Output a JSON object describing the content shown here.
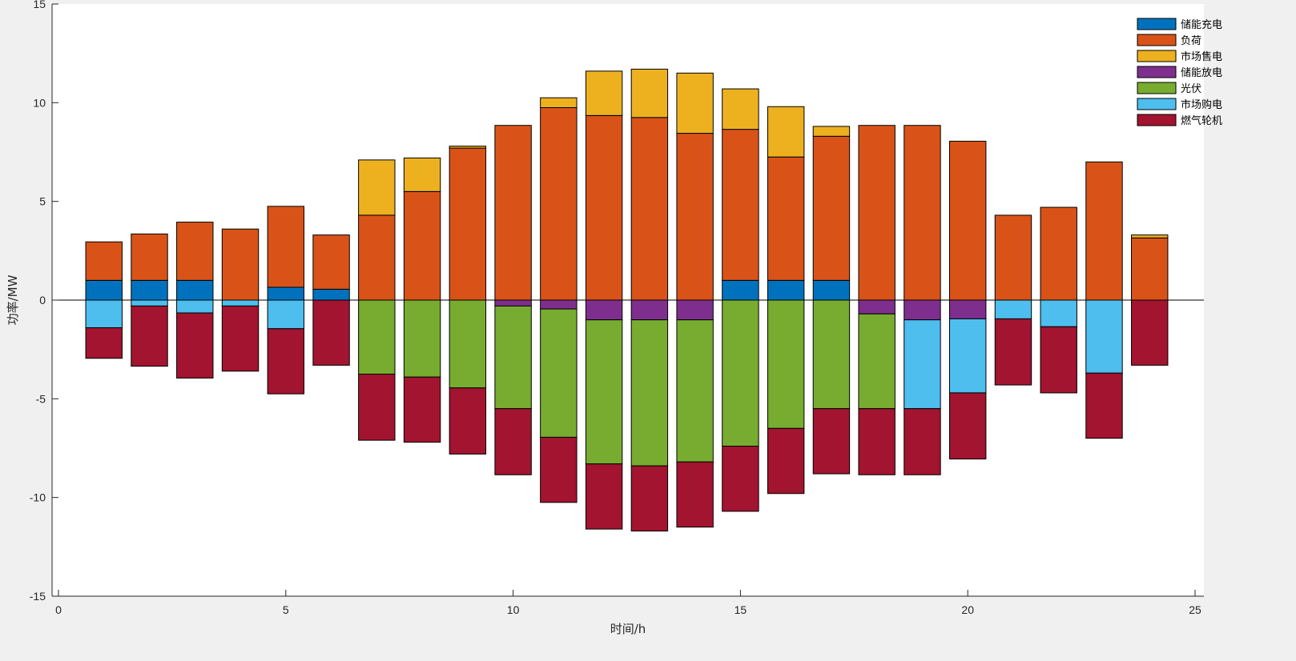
{
  "chart_data": {
    "type": "bar",
    "stacked": true,
    "title": "",
    "xlabel": "时间/h",
    "ylabel": "功率/MW",
    "xlim": [
      0,
      25
    ],
    "ylim": [
      -15,
      15
    ],
    "xticks": [
      0,
      5,
      10,
      15,
      20,
      25
    ],
    "yticks": [
      -15,
      -10,
      -5,
      0,
      5,
      10,
      15
    ],
    "grid": false,
    "legend_position": "top-right",
    "categories": [
      1,
      2,
      3,
      4,
      5,
      6,
      7,
      8,
      9,
      10,
      11,
      12,
      13,
      14,
      15,
      16,
      17,
      18,
      19,
      20,
      21,
      22,
      23,
      24
    ],
    "positive_series": [
      {
        "name": "储能充电",
        "color": "#0072bd",
        "values": [
          1.0,
          1.0,
          1.0,
          0,
          0.65,
          0.55,
          0,
          0,
          0,
          0,
          0,
          0,
          0,
          0,
          1.0,
          1.0,
          1.0,
          0,
          0,
          0,
          0,
          0,
          0,
          0
        ]
      },
      {
        "name": "负荷",
        "color": "#d95319",
        "values": [
          1.95,
          2.35,
          2.95,
          3.6,
          4.1,
          2.75,
          4.3,
          5.5,
          7.7,
          8.85,
          9.75,
          9.35,
          9.25,
          8.45,
          7.65,
          6.25,
          7.3,
          8.85,
          8.85,
          8.05,
          4.3,
          4.7,
          7.0,
          3.15
        ]
      },
      {
        "name": "市场售电",
        "color": "#edb120",
        "values": [
          0,
          0,
          0,
          0,
          0,
          0,
          2.8,
          1.7,
          0.1,
          0,
          0.5,
          2.25,
          2.45,
          3.05,
          2.05,
          2.55,
          0.5,
          0,
          0,
          0,
          0,
          0,
          0,
          0.15
        ]
      }
    ],
    "negative_series": [
      {
        "name": "储能放电",
        "color": "#7e2f8e",
        "values": [
          0,
          0,
          0,
          0,
          0,
          0,
          0,
          0,
          0,
          -0.3,
          -0.45,
          -1.0,
          -1.0,
          -1.0,
          0,
          0,
          0,
          -0.7,
          -1.0,
          -0.95,
          0,
          0,
          0,
          0
        ]
      },
      {
        "name": "光伏",
        "color": "#77ac30",
        "values": [
          0,
          0,
          0,
          0,
          0,
          0,
          -3.75,
          -3.9,
          -4.45,
          -5.2,
          -6.5,
          -7.3,
          -7.4,
          -7.2,
          -7.4,
          -6.5,
          -5.5,
          -4.8,
          0,
          0,
          0,
          0,
          0,
          0
        ]
      },
      {
        "name": "市场购电",
        "color": "#4dbeee",
        "values": [
          -1.4,
          -0.3,
          -0.65,
          -0.3,
          -1.45,
          0,
          0,
          0,
          0,
          0,
          0,
          0,
          0,
          0,
          0,
          0,
          0,
          0,
          -4.5,
          -3.75,
          -0.95,
          -1.35,
          -3.7,
          0
        ]
      },
      {
        "name": "燃气轮机",
        "color": "#a2142f",
        "values": [
          -1.55,
          -3.05,
          -3.3,
          -3.3,
          -3.3,
          -3.3,
          -3.35,
          -3.3,
          -3.35,
          -3.35,
          -3.3,
          -3.3,
          -3.3,
          -3.3,
          -3.3,
          -3.3,
          -3.3,
          -3.35,
          -3.35,
          -3.35,
          -3.35,
          -3.35,
          -3.3,
          -3.3
        ]
      }
    ],
    "legend": [
      "储能充电",
      "负荷",
      "市场售电",
      "储能放电",
      "光伏",
      "市场购电",
      "燃气轮机"
    ]
  }
}
